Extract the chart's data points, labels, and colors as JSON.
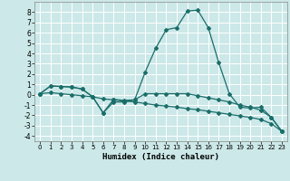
{
  "xlabel": "Humidex (Indice chaleur)",
  "xlim": [
    -0.5,
    23.5
  ],
  "ylim": [
    -4.5,
    9.0
  ],
  "yticks": [
    -4,
    -3,
    -2,
    -1,
    0,
    1,
    2,
    3,
    4,
    5,
    6,
    7,
    8
  ],
  "xticks": [
    0,
    1,
    2,
    3,
    4,
    5,
    6,
    7,
    8,
    9,
    10,
    11,
    12,
    13,
    14,
    15,
    16,
    17,
    18,
    19,
    20,
    21,
    22,
    23
  ],
  "background_color": "#cce8e8",
  "grid_color": "#b0d8d8",
  "line_color": "#1a6e6a",
  "line1_x": [
    0,
    1,
    2,
    3,
    4,
    5,
    6,
    7,
    8,
    9,
    10,
    11,
    12,
    13,
    14,
    15,
    16,
    17,
    18,
    19,
    20,
    21,
    22,
    23
  ],
  "line1_y": [
    0.1,
    0.85,
    0.8,
    0.75,
    0.55,
    -0.2,
    -1.75,
    -0.45,
    -0.55,
    -0.5,
    2.2,
    4.5,
    6.3,
    6.5,
    8.1,
    8.2,
    6.5,
    3.1,
    0.1,
    -1.2,
    -1.3,
    -1.2,
    -2.2,
    -3.55
  ],
  "line2_x": [
    0,
    1,
    2,
    3,
    4,
    5,
    6,
    7,
    8,
    9,
    10,
    11,
    12,
    13,
    14,
    15,
    16,
    17,
    18,
    19,
    20,
    21,
    22,
    23
  ],
  "line2_y": [
    0.1,
    0.85,
    0.8,
    0.75,
    0.55,
    -0.2,
    -1.75,
    -0.7,
    -0.7,
    -0.5,
    0.1,
    0.1,
    0.1,
    0.1,
    0.1,
    -0.1,
    -0.3,
    -0.5,
    -0.7,
    -1.0,
    -1.2,
    -1.5,
    -2.2,
    -3.55
  ],
  "line3_x": [
    0,
    1,
    2,
    3,
    4,
    5,
    6,
    7,
    8,
    9,
    10,
    11,
    12,
    13,
    14,
    15,
    16,
    17,
    18,
    19,
    20,
    21,
    22,
    23
  ],
  "line3_y": [
    0.1,
    0.2,
    0.1,
    0.0,
    -0.1,
    -0.2,
    -0.4,
    -0.5,
    -0.6,
    -0.7,
    -0.85,
    -1.0,
    -1.1,
    -1.2,
    -1.35,
    -1.45,
    -1.6,
    -1.75,
    -1.9,
    -2.05,
    -2.2,
    -2.4,
    -2.8,
    -3.55
  ]
}
